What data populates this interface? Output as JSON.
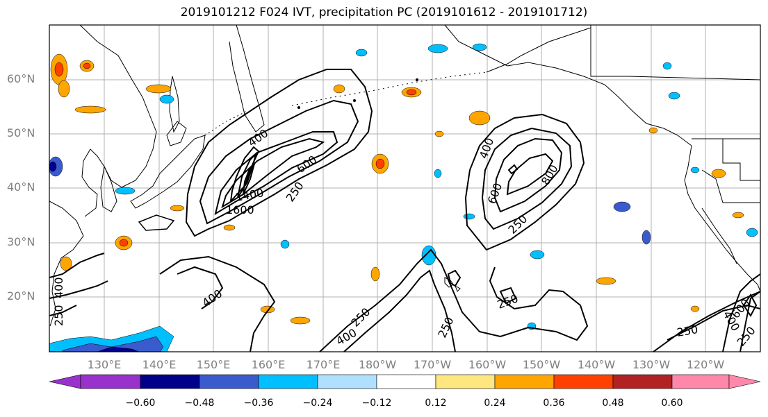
{
  "title": "2019101212 F024 IVT, precipitation PC (2019101612 - 2019101712)",
  "map": {
    "projection": "PlateCarree",
    "extent_lon": [
      120,
      250
    ],
    "extent_lat": [
      10,
      70
    ],
    "lat_labels": [
      "60°N",
      "50°N",
      "40°N",
      "30°N",
      "20°N"
    ],
    "lon_labels": [
      "130°E",
      "140°E",
      "150°E",
      "160°E",
      "170°E",
      "180°W",
      "170°W",
      "160°W",
      "150°W",
      "140°W",
      "130°W",
      "120°W"
    ],
    "coastline_color": "#000000",
    "gridline_color": "#b0b0b0",
    "ivt_contour_labels": [
      "400",
      "600",
      "250",
      "1400",
      "1600",
      "400",
      "600",
      "800",
      "250",
      "400",
      "250",
      "400",
      "250",
      "250",
      "250",
      "400",
      "600",
      "250",
      "400",
      "250"
    ]
  },
  "colorbar": {
    "colors": [
      "#9932CC",
      "#00008B",
      "#3A5BCD",
      "#00BFFF",
      "#AFE0FF",
      "#FFFFFF",
      "#FFE77F",
      "#FFA500",
      "#FF4000",
      "#B22222",
      "#FF88AA"
    ],
    "ticks": [
      "−0.60",
      "−0.48",
      "−0.36",
      "−0.24",
      "−0.12",
      "0.12",
      "0.24",
      "0.36",
      "0.48",
      "0.60"
    ],
    "extend": "both"
  }
}
